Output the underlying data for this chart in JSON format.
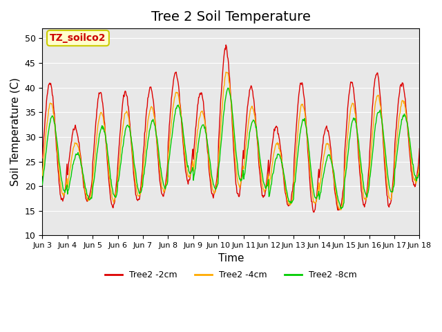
{
  "title": "Tree 2 Soil Temperature",
  "xlabel": "Time",
  "ylabel": "Soil Temperature (C)",
  "ylim": [
    10,
    52
  ],
  "yticks": [
    10,
    15,
    20,
    25,
    30,
    35,
    40,
    45,
    50
  ],
  "xtick_labels": [
    "Jun 3",
    "Jun 4",
    "Jun 5",
    "Jun 6",
    "Jun 7",
    "Jun 8",
    "Jun 9",
    "Jun 10",
    "Jun 11",
    "Jun 12",
    "Jun 13",
    "Jun 14",
    "Jun 15",
    "Jun 16",
    "Jun 17",
    "Jun 18"
  ],
  "legend_labels": [
    "Tree2 -2cm",
    "Tree2 -4cm",
    "Tree2 -8cm"
  ],
  "line_colors": [
    "#dd0000",
    "#ffaa00",
    "#00cc00"
  ],
  "annotation_text": "TZ_soilco2",
  "annotation_bg": "#ffffcc",
  "annotation_border": "#cccc00",
  "background_color": "#e8e8e8",
  "title_fontsize": 14,
  "axis_fontsize": 11
}
